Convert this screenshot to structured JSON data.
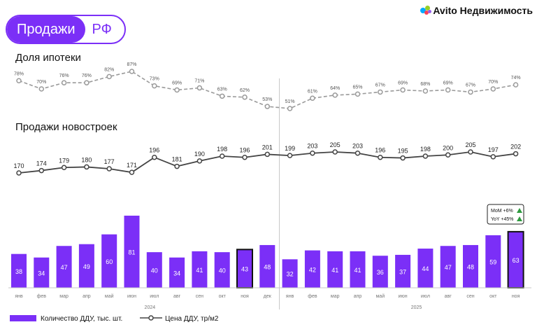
{
  "header": {
    "pill_left": "Продажи",
    "pill_right": "РФ"
  },
  "brand": {
    "name": "Avito Недвижимость"
  },
  "sections": {
    "mortgage_title": "Доля ипотеки",
    "sales_title": "Продажи новостроек"
  },
  "badge": {
    "mom": "MoM +6%",
    "yoy": "YoY +45%"
  },
  "colors": {
    "accent": "#7b2ff7",
    "bar": "#7b2ff7",
    "line_mortgage": "#9a9a9a",
    "line_price": "#444444",
    "badge_arrow": "#2e9a3e"
  },
  "chart_data": {
    "type": "bar+line",
    "categories": [
      "янв",
      "фев",
      "мар",
      "апр",
      "май",
      "июн",
      "июл",
      "авг",
      "сен",
      "окт",
      "ноя",
      "дек",
      "янв",
      "фев",
      "мар",
      "апр",
      "май",
      "июн",
      "июл",
      "авг",
      "сен",
      "окт",
      "ноя"
    ],
    "year_labels": [
      "2024",
      "2025"
    ],
    "series": [
      {
        "name": "Количество ДДУ, тыс. шт.",
        "kind": "bar",
        "values": [
          38,
          34,
          47,
          49,
          60,
          81,
          40,
          34,
          41,
          40,
          43,
          48,
          32,
          42,
          41,
          41,
          36,
          37,
          44,
          47,
          48,
          59,
          63
        ],
        "highlighted_indices": [
          10,
          22
        ]
      },
      {
        "name": "Цена ДДУ, тр/м2",
        "kind": "line",
        "values": [
          170,
          174,
          179,
          180,
          177,
          171,
          196,
          181,
          190,
          198,
          196,
          201,
          199,
          203,
          205,
          203,
          196,
          195,
          198,
          200,
          205,
          197,
          202
        ]
      },
      {
        "name": "Доля ипотеки",
        "kind": "line",
        "unit": "%",
        "values": [
          78,
          70,
          76,
          76,
          82,
          87,
          73,
          69,
          71,
          63,
          62,
          53,
          51,
          61,
          64,
          65,
          67,
          69,
          68,
          69,
          67,
          70,
          74
        ],
        "labels": [
          "78%",
          "70%",
          "76%",
          "76%",
          "82%",
          "87%",
          "73%",
          "69%",
          "71%",
          "63%",
          "62%",
          "53%",
          "51%",
          "61%",
          "64%",
          "65%",
          "67%",
          "69%",
          "68%",
          "69%",
          "67%",
          "70%",
          "74%"
        ]
      }
    ],
    "legend": [
      "Количество ДДУ, тыс. шт.",
      "Цена ДДУ, тр/м2"
    ],
    "legend_position": "bottom-left"
  }
}
